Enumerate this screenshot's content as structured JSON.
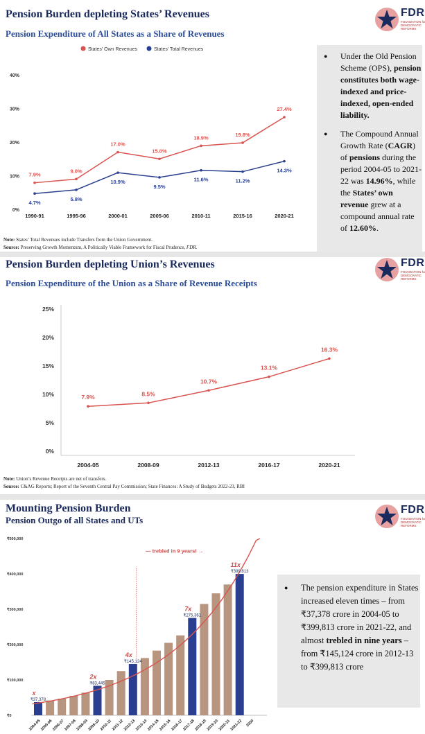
{
  "brand": {
    "logo_text": "FDR",
    "logo_sub": "FOUNDATION for DEMOCRATIC REFORMS",
    "accent_blue": "#1b2a5c",
    "accent_red": "#c94a4a"
  },
  "panel1": {
    "title": "Pension Burden depleting States’ Revenues",
    "subtitle": "Pension Expenditure of All States as a Share of Revenues",
    "note_label": "Note:",
    "note_text": " States’ Total Revenues include Transfers from the Union Government.",
    "source_label": "Source:",
    "source_text": " Preserving Growth Momentum, A Politically Viable Framework for Fiscal Prudence, ",
    "source_em": "FDR.",
    "bullets": [
      {
        "parts": [
          {
            "t": "Under the Old Pension Scheme (OPS), ",
            "b": false
          },
          {
            "t": "pension constitutes both wage-indexed and price-indexed, open-ended liability.",
            "b": true
          }
        ]
      },
      {
        "parts": [
          {
            "t": "The Compound Annual Growth Rate (",
            "b": false
          },
          {
            "t": "CAGR",
            "b": true
          },
          {
            "t": ") of ",
            "b": false
          },
          {
            "t": "pensions",
            "b": true
          },
          {
            "t": " during the period 2004-05 to 2021-22 was ",
            "b": false
          },
          {
            "t": "14.96%",
            "b": true
          },
          {
            "t": ", while the ",
            "b": false
          },
          {
            "t": "States’ own revenue",
            "b": true
          },
          {
            "t": " grew at a compound annual rate of ",
            "b": false
          },
          {
            "t": "12.60%",
            "b": true
          },
          {
            "t": ".",
            "b": false
          }
        ]
      }
    ]
  },
  "panel2": {
    "title": "Pension Burden depleting Union’s Revenues",
    "subtitle": "Pension Expenditure of the Union as a Share of Revenue Receipts",
    "note_label": "Note:",
    "note_text": " Union’s Revenue Receipts are net of transfers.",
    "source_label": "Source:",
    "source_text": " C&AG Reports; Report of the Seventh Central Pay Commission; State Finances: A Study of Budgets 2022-23, RBI"
  },
  "panel3": {
    "title": "Mounting Pension Burden",
    "subtitle": "Pension Outgo of all States and UTs",
    "bullets": [
      {
        "parts": [
          {
            "t": "The pension expenditure in States increased eleven times – from ₹37,378 crore in 2004-05 to ₹399,813 crore in 2021-22, and almost ",
            "b": false
          },
          {
            "t": "trebled in nine years",
            "b": true
          },
          {
            "t": " – from ₹145,124 crore in 2012-13 to ₹399,813 crore",
            "b": false
          }
        ]
      }
    ]
  },
  "chart_data": [
    {
      "type": "line",
      "title": "Pension Expenditure of All States as a Share of Revenues",
      "categories": [
        "1990-91",
        "1995-96",
        "2000-01",
        "2005-06",
        "2010-11",
        "2015-16",
        "2020-21"
      ],
      "series": [
        {
          "name": "States' Own Revenues",
          "color": "#d9534f",
          "values": [
            7.9,
            9.0,
            17.0,
            15.0,
            18.9,
            19.8,
            27.4
          ],
          "labels": [
            "7.9%",
            "9.0%",
            "17.0%",
            "15.0%",
            "18.9%",
            "19.8%",
            "27.4%"
          ]
        },
        {
          "name": "States' Total Revenues",
          "color": "#2a3f8f",
          "values": [
            4.7,
            5.8,
            10.9,
            9.5,
            11.6,
            11.2,
            14.3
          ],
          "labels": [
            "4.7%",
            "5.8%",
            "10.9%",
            "9.5%",
            "11.6%",
            "11.2%",
            "14.3%"
          ]
        }
      ],
      "yticks": [
        "0%",
        "10%",
        "20%",
        "30%",
        "40%"
      ],
      "ylim": [
        0,
        40
      ],
      "legend": "top-center",
      "grid": false
    },
    {
      "type": "line",
      "title": "Pension Expenditure of the Union as a Share of Revenue Receipts",
      "categories": [
        "2004-05",
        "2008-09",
        "2012-13",
        "2016-17",
        "2020-21"
      ],
      "series": [
        {
          "color": "#d9534f",
          "values": [
            7.9,
            8.5,
            10.7,
            13.1,
            16.3
          ],
          "labels": [
            "7.9%",
            "8.5%",
            "10.7%",
            "13.1%",
            "16.3%"
          ]
        }
      ],
      "yticks": [
        "0%",
        "5%",
        "10%",
        "15%",
        "20%",
        "25%"
      ],
      "ylim": [
        0,
        25
      ],
      "grid": false
    },
    {
      "type": "bar",
      "title": "Pension Outgo of all States and UTs",
      "categories": [
        "2004-05",
        "2005-06",
        "2006-07",
        "2007-08",
        "2008-09",
        "2009-10",
        "2010-11",
        "2011-12",
        "2012-13",
        "2013-14",
        "2014-15",
        "2015-16",
        "2016-17",
        "2017-18",
        "2018-19",
        "2019-20",
        "2020-21",
        "2021-22",
        "2050"
      ],
      "values": [
        37378,
        42000,
        47000,
        55000,
        64000,
        83445,
        100000,
        125000,
        145124,
        162000,
        183000,
        205000,
        226000,
        275361,
        315000,
        345000,
        370000,
        399813,
        null
      ],
      "highlight": [
        0,
        5,
        8,
        13,
        17
      ],
      "bar_color": "#b8957f",
      "highlight_color": "#2a3f8f",
      "value_labels": {
        "0": "₹37,378",
        "5": "₹83,445",
        "8": "₹145,124",
        "13": "₹275,361",
        "17": "₹399,813"
      },
      "multiplier_labels": {
        "0": "x",
        "5": "2x",
        "8": "4x",
        "13": "7x",
        "17": "11x"
      },
      "yticks": [
        "₹0",
        "₹100,000",
        "₹200,000",
        "₹300,000",
        "₹400,000",
        "₹500,000"
      ],
      "ylim": [
        0,
        500000
      ],
      "annotation": "trebled in 9 years!",
      "trend_color": "#d9534f"
    }
  ]
}
